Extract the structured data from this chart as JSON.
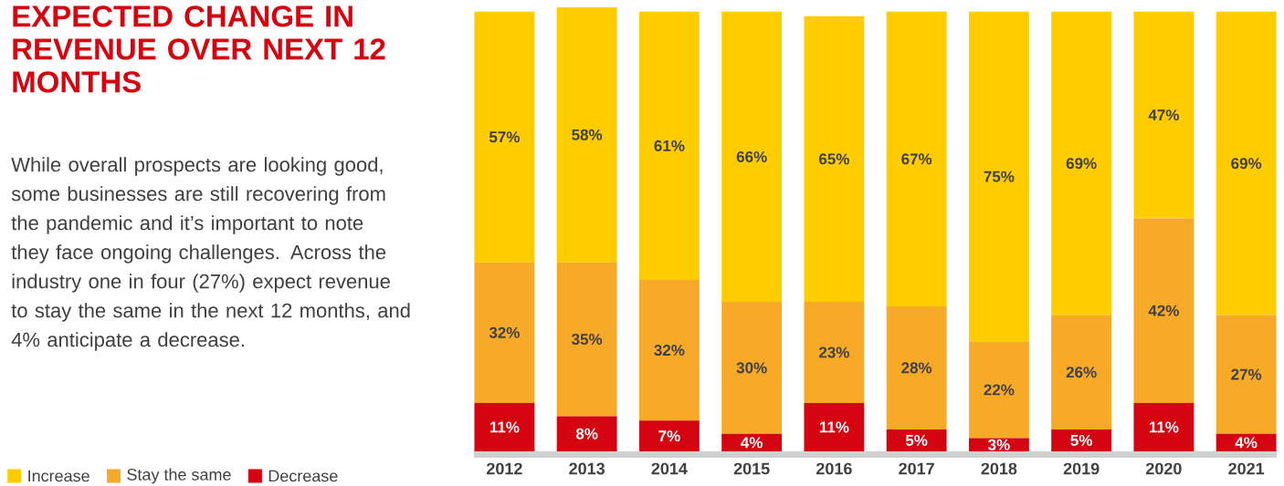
{
  "chart_data": {
    "type": "bar",
    "stacked": true,
    "title": "EXPECTED CHANGE IN REVENUE OVER NEXT 12 MONTHS",
    "subtitle": "While overall prospects are looking good, some businesses are still recovering from the pandemic and it’s important to note they face ongoing challenges. Across the industry one in four (27%) expect revenue to stay the same in the next 12 months, and 4% anticipate a decrease.",
    "categories": [
      "2012",
      "2013",
      "2014",
      "2015",
      "2016",
      "2017",
      "2018",
      "2019",
      "2020",
      "2021"
    ],
    "series": [
      {
        "name": "Decrease",
        "color": "#d40511",
        "values": [
          11,
          8,
          7,
          4,
          11,
          5,
          3,
          5,
          11,
          4
        ],
        "value_labels": [
          "11%",
          "8%",
          "7%",
          "4%",
          "11%",
          "5%",
          "3%",
          "5%",
          "11%",
          "4%"
        ]
      },
      {
        "name": "Stay the same",
        "color": "#f7a928",
        "values": [
          32,
          35,
          32,
          30,
          23,
          28,
          22,
          26,
          42,
          27
        ],
        "value_labels": [
          "32%",
          "35%",
          "32%",
          "30%",
          "23%",
          "28%",
          "22%",
          "26%",
          "42%",
          "27%"
        ]
      },
      {
        "name": "Increase",
        "color": "#ffcc00",
        "values": [
          57,
          58,
          61,
          66,
          65,
          67,
          75,
          69,
          47,
          69
        ],
        "value_labels": [
          "57%",
          "58%",
          "61%",
          "66%",
          "65%",
          "67%",
          "75%",
          "69%",
          "47%",
          "69%"
        ]
      }
    ],
    "legend": "bottom left"
  }
}
